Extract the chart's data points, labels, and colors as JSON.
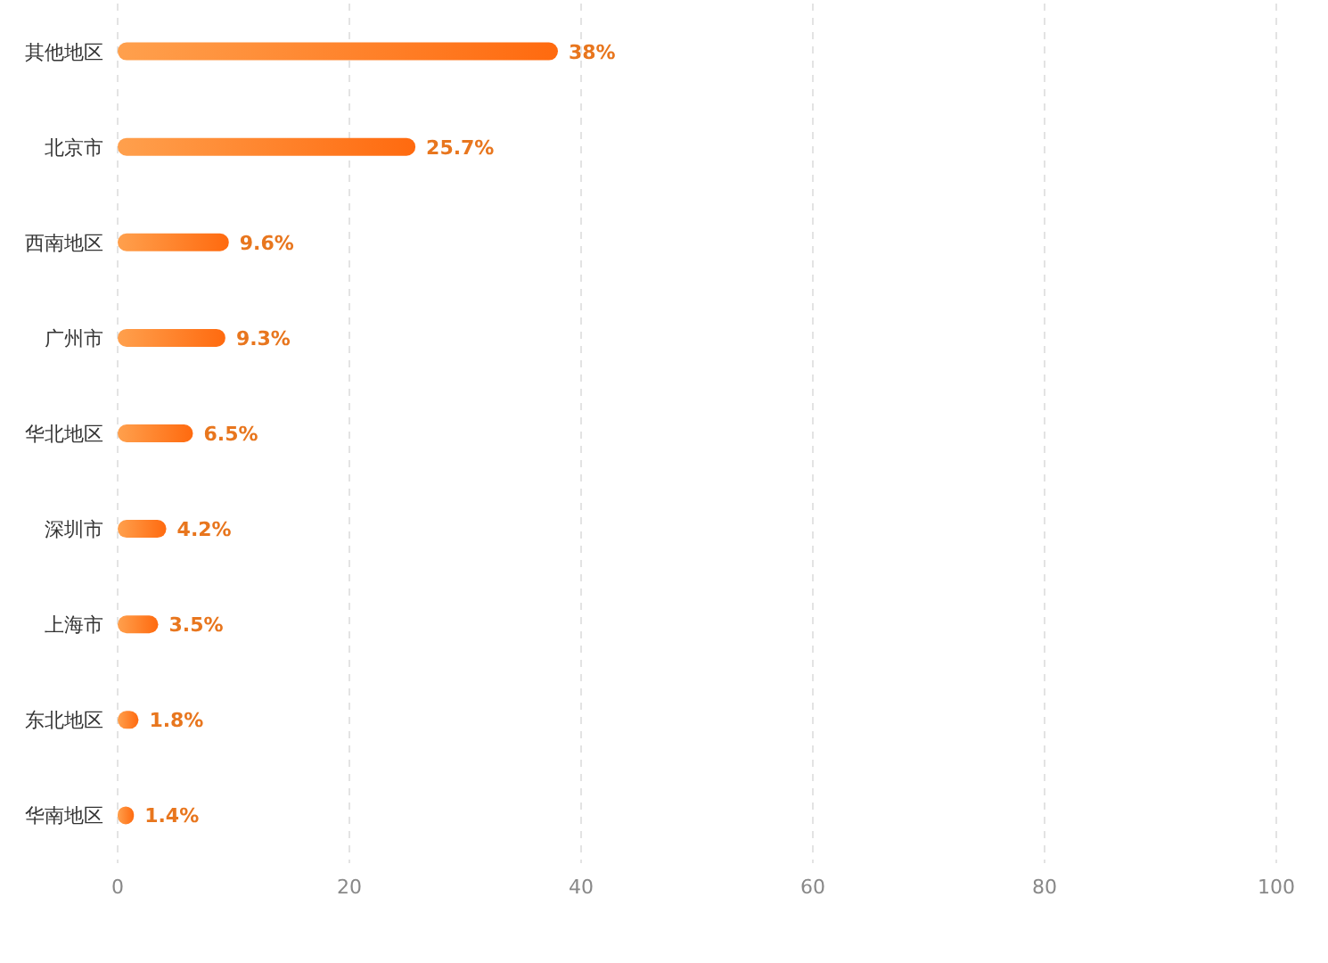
{
  "chart_data": {
    "type": "bar",
    "orientation": "horizontal",
    "categories": [
      "其他地区",
      "北京市",
      "西南地区",
      "广州市",
      "华北地区",
      "深圳市",
      "上海市",
      "东北地区",
      "华南地区"
    ],
    "values": [
      38,
      25.7,
      9.6,
      9.3,
      6.5,
      4.2,
      3.5,
      1.8,
      1.4
    ],
    "value_labels": [
      "38%",
      "25.7%",
      "9.6%",
      "9.3%",
      "6.5%",
      "4.2%",
      "3.5%",
      "1.8%",
      "1.4%"
    ],
    "color": "#ff6a0f",
    "xlim": [
      0,
      100
    ],
    "xticks": [
      0,
      20,
      40,
      60,
      80,
      100
    ],
    "grid": "x"
  }
}
